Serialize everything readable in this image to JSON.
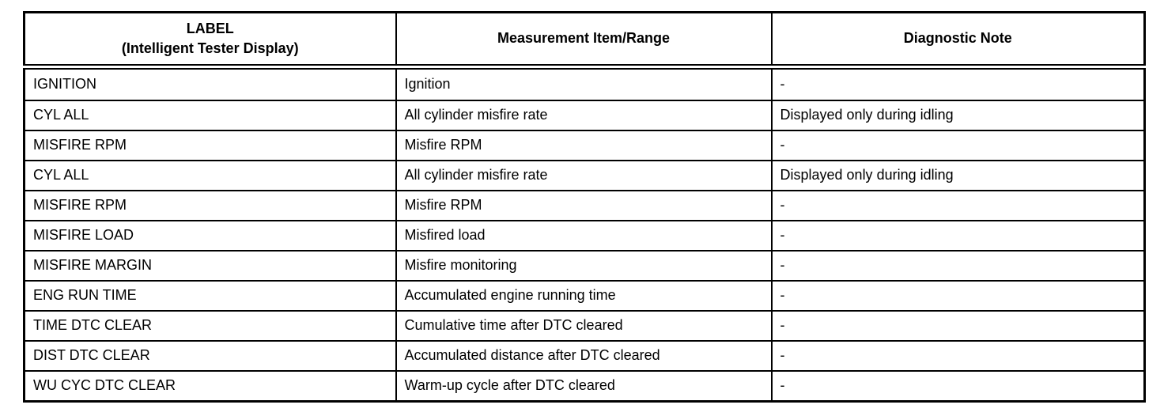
{
  "table": {
    "columns": [
      {
        "title_line1": "LABEL",
        "title_line2": "(Intelligent Tester Display)"
      },
      {
        "title": "Measurement Item/Range"
      },
      {
        "title": "Diagnostic Note"
      }
    ],
    "rows": [
      {
        "label": "IGNITION",
        "item": "Ignition",
        "note": "-"
      },
      {
        "label": "CYL ALL",
        "item": "All cylinder misfire rate",
        "note": "Displayed only during idling"
      },
      {
        "label": "MISFIRE RPM",
        "item": "Misfire RPM",
        "note": "-"
      },
      {
        "label": "CYL ALL",
        "item": "All cylinder misfire rate",
        "note": "Displayed only during idling"
      },
      {
        "label": "MISFIRE RPM",
        "item": "Misfire RPM",
        "note": "-"
      },
      {
        "label": "MISFIRE LOAD",
        "item": "Misfired load",
        "note": "-"
      },
      {
        "label": "MISFIRE MARGIN",
        "item": "Misfire monitoring",
        "note": "-"
      },
      {
        "label": "ENG RUN TIME",
        "item": "Accumulated engine running time",
        "note": "-"
      },
      {
        "label": "TIME DTC CLEAR",
        "item": "Cumulative time after DTC cleared",
        "note": "-"
      },
      {
        "label": "DIST DTC CLEAR",
        "item": "Accumulated distance after DTC cleared",
        "note": "-"
      },
      {
        "label": "WU CYC DTC CLEAR",
        "item": "Warm-up cycle after DTC cleared",
        "note": "-"
      }
    ],
    "colors": {
      "border": "#000000",
      "background": "#ffffff",
      "text": "#000000"
    }
  }
}
